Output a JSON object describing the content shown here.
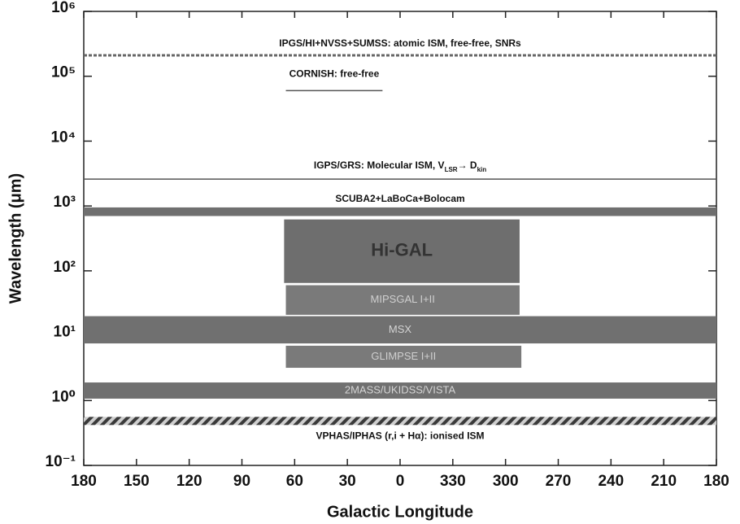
{
  "chart_data": {
    "type": "coverage",
    "x_label": "Galactic Longitude",
    "y_label": "Wavelength (μm)",
    "xlim": [
      180,
      -180
    ],
    "xticks": [
      180,
      150,
      120,
      90,
      60,
      30,
      0,
      {
        "value": -30,
        "label": "330"
      },
      {
        "value": -60,
        "label": "300"
      },
      {
        "value": -90,
        "label": "270"
      },
      {
        "value": -120,
        "label": "240"
      },
      {
        "value": -150,
        "label": "210"
      },
      {
        "value": -180,
        "label": "180"
      }
    ],
    "ylim": [
      0.1,
      1000000
    ],
    "log_y": true,
    "yticks": [
      {
        "value": 0.1,
        "label": "10⁻¹"
      },
      {
        "value": 1,
        "label": "10⁰"
      },
      {
        "value": 10,
        "label": "10¹"
      },
      {
        "value": 100,
        "label": "10²"
      },
      {
        "value": 1000,
        "label": "10³"
      },
      {
        "value": 10000,
        "label": "10⁴"
      },
      {
        "value": 100000,
        "label": "10⁵"
      },
      {
        "value": 1000000,
        "label": "10⁶"
      }
    ],
    "surveys": [
      {
        "label": "IPGS/HI+NVSS+SUMSS: atomic ISM, free-free, SNRs",
        "lon": [
          180,
          -180
        ],
        "wavelength": 210000,
        "style": "dashed",
        "color": "#666666"
      },
      {
        "label": "CORNISH: free-free",
        "lon": [
          65,
          10
        ],
        "wavelength": 60000,
        "style": "line",
        "color": "#555555"
      },
      {
        "label": [
          "IGPS/GRS: Molecular ISM, V",
          "LSR",
          "→ D",
          "kin"
        ],
        "lon": [
          180,
          -180
        ],
        "wavelength": 2600,
        "style": "line",
        "color": "#555555"
      },
      {
        "label": "SCUBA2+LaBoCa+Bolocam",
        "lon": [
          180,
          -180
        ],
        "wavelength": [
          700,
          950
        ],
        "style": "band",
        "color": "#6f6f6f"
      },
      {
        "label": "Hi-GAL",
        "lon": [
          66,
          -68
        ],
        "wavelength": [
          65,
          620
        ],
        "style": "band",
        "color": "#6e6e6e"
      },
      {
        "label": "MIPSGAL I+II",
        "lon": [
          65,
          -68
        ],
        "wavelength": [
          21,
          60
        ],
        "style": "band",
        "color": "#7a7a7a"
      },
      {
        "label": "MSX",
        "lon": [
          180,
          -180
        ],
        "wavelength": [
          7.6,
          20
        ],
        "style": "band",
        "color": "#707070"
      },
      {
        "label": "GLIMPSE I+II",
        "lon": [
          65,
          -69
        ],
        "wavelength": [
          3.2,
          7
        ],
        "style": "band",
        "color": "#7a7a7a"
      },
      {
        "label": "2MASS/UKIDSS/VISTA",
        "lon": [
          180,
          -180
        ],
        "wavelength": [
          1.07,
          1.9
        ],
        "style": "band",
        "color": "#707070"
      },
      {
        "label": "VPHAS/IPHAS (r,i + Hα): ionised ISM",
        "lon": [
          180,
          -180
        ],
        "wavelength": [
          0.42,
          0.56
        ],
        "style": "hatched",
        "color": "#444444"
      }
    ]
  }
}
